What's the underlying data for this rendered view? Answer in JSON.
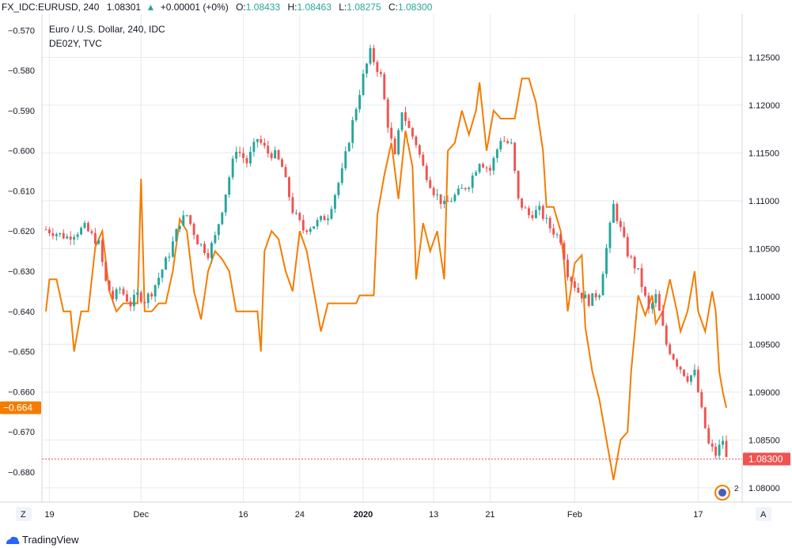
{
  "header": {
    "symbol": "FX_IDC:EURUSD, 240",
    "last": "1.08301",
    "change_arrow": "▲",
    "change": "+0.00001 (+0%)",
    "o_label": "O:",
    "o": "1.08433",
    "h_label": "H:",
    "h": "1.08463",
    "l_label": "L:",
    "l": "1.08275",
    "c_label": "C:",
    "c": "1.08300"
  },
  "legend": {
    "main": "Euro / U.S. Dollar, 240, IDC",
    "compare": "DE02Y, TVC"
  },
  "footer": {
    "brand": "TradingView"
  },
  "buttons": {
    "left": "Z",
    "right": "A"
  },
  "colors": {
    "up": "#26a69a",
    "down": "#ef5350",
    "compare": "#f57c00",
    "grid": "#e6e9ef",
    "axis_text": "#131722"
  },
  "chart_data": {
    "type": "candlestick+line",
    "x_tick_labels": [
      "19",
      "Dec",
      "16",
      "24",
      "2020",
      "13",
      "21",
      "Feb",
      "17"
    ],
    "left_axis": {
      "series": "DE02Y",
      "ticks": [
        "-0.570",
        "-0.580",
        "-0.590",
        "-0.600",
        "-0.610",
        "-0.620",
        "-0.630",
        "-0.640",
        "-0.650",
        "-0.660",
        "-0.670",
        "-0.680"
      ],
      "range": [
        -0.6875,
        -0.566
      ],
      "current_label": "-0.664"
    },
    "right_axis": {
      "series": "EURUSD",
      "ticks": [
        "1.12500",
        "1.12000",
        "1.11500",
        "1.11000",
        "1.10500",
        "1.10000",
        "1.09500",
        "1.09000",
        "1.08500",
        "1.08000"
      ],
      "range": [
        1.0785,
        1.1295
      ],
      "current_label": "1.08300"
    },
    "eurusd_path": [
      [
        0,
        1.107
      ],
      [
        6,
        1.1062
      ],
      [
        11,
        1.1072
      ],
      [
        15,
        1.1055
      ],
      [
        17,
        1.1015
      ],
      [
        19,
        1.0998
      ],
      [
        21,
        1.1008
      ],
      [
        24,
        1.0992
      ],
      [
        26,
        1.1002
      ],
      [
        28,
        1.0996
      ],
      [
        30,
        1.1005
      ],
      [
        32,
        1.102
      ],
      [
        35,
        1.1045
      ],
      [
        38,
        1.1078
      ],
      [
        40,
        1.1085
      ],
      [
        43,
        1.1058
      ],
      [
        46,
        1.1045
      ],
      [
        48,
        1.1062
      ],
      [
        50,
        1.1092
      ],
      [
        52,
        1.1125
      ],
      [
        54,
        1.1155
      ],
      [
        57,
        1.114
      ],
      [
        60,
        1.1165
      ],
      [
        63,
        1.115
      ],
      [
        65,
        1.1148
      ],
      [
        67,
        1.1135
      ],
      [
        70,
        1.109
      ],
      [
        73,
        1.107
      ],
      [
        76,
        1.1075
      ],
      [
        80,
        1.1085
      ],
      [
        84,
        1.113
      ],
      [
        87,
        1.1182
      ],
      [
        90,
        1.123
      ],
      [
        92,
        1.1255
      ],
      [
        95,
        1.123
      ],
      [
        97,
        1.118
      ],
      [
        99,
        1.1145
      ],
      [
        101,
        1.1195
      ],
      [
        103,
        1.1175
      ],
      [
        105,
        1.116
      ],
      [
        107,
        1.1135
      ],
      [
        110,
        1.111
      ],
      [
        113,
        1.1095
      ],
      [
        116,
        1.1105
      ],
      [
        120,
        1.1118
      ],
      [
        123,
        1.1142
      ],
      [
        126,
        1.1132
      ],
      [
        129,
        1.1165
      ],
      [
        132,
        1.1158
      ],
      [
        134,
        1.11
      ],
      [
        137,
        1.1085
      ],
      [
        140,
        1.109
      ],
      [
        143,
        1.1072
      ],
      [
        146,
        1.106
      ],
      [
        148,
        1.1025
      ],
      [
        151,
        1.1005
      ],
      [
        154,
        1.0995
      ],
      [
        157,
        1.1005
      ],
      [
        159,
        1.105
      ],
      [
        161,
        1.1095
      ],
      [
        163,
        1.107
      ],
      [
        165,
        1.1045
      ],
      [
        168,
        1.1025
      ],
      [
        171,
        1.0985
      ],
      [
        173,
        1.1
      ],
      [
        176,
        1.095
      ],
      [
        179,
        1.093
      ],
      [
        182,
        1.0915
      ],
      [
        184,
        1.092
      ],
      [
        186,
        1.088
      ],
      [
        188,
        1.0845
      ],
      [
        190,
        1.0835
      ],
      [
        192,
        1.085
      ],
      [
        193,
        1.083
      ]
    ],
    "de02y_path": [
      [
        0,
        -0.64
      ],
      [
        1,
        -0.632
      ],
      [
        3,
        -0.632
      ],
      [
        5,
        -0.64
      ],
      [
        7,
        -0.64
      ],
      [
        8,
        -0.65
      ],
      [
        10,
        -0.64
      ],
      [
        12,
        -0.64
      ],
      [
        14,
        -0.624
      ],
      [
        16,
        -0.62
      ],
      [
        18,
        -0.635
      ],
      [
        20,
        -0.64
      ],
      [
        22,
        -0.638
      ],
      [
        24,
        -0.638
      ],
      [
        26,
        -0.638
      ],
      [
        27,
        -0.607
      ],
      [
        28,
        -0.64
      ],
      [
        30,
        -0.64
      ],
      [
        32,
        -0.638
      ],
      [
        34,
        -0.638
      ],
      [
        36,
        -0.63
      ],
      [
        38,
        -0.617
      ],
      [
        40,
        -0.62
      ],
      [
        42,
        -0.635
      ],
      [
        44,
        -0.642
      ],
      [
        46,
        -0.63
      ],
      [
        48,
        -0.625
      ],
      [
        50,
        -0.627
      ],
      [
        52,
        -0.63
      ],
      [
        54,
        -0.64
      ],
      [
        56,
        -0.64
      ],
      [
        58,
        -0.64
      ],
      [
        60,
        -0.64
      ],
      [
        61,
        -0.65
      ],
      [
        62,
        -0.625
      ],
      [
        64,
        -0.62
      ],
      [
        66,
        -0.622
      ],
      [
        68,
        -0.63
      ],
      [
        70,
        -0.635
      ],
      [
        72,
        -0.62
      ],
      [
        74,
        -0.625
      ],
      [
        76,
        -0.635
      ],
      [
        78,
        -0.645
      ],
      [
        80,
        -0.638
      ],
      [
        82,
        -0.638
      ],
      [
        84,
        -0.638
      ],
      [
        86,
        -0.638
      ],
      [
        88,
        -0.638
      ],
      [
        89,
        -0.636
      ],
      [
        91,
        -0.636
      ],
      [
        93,
        -0.636
      ],
      [
        94,
        -0.616
      ],
      [
        96,
        -0.606
      ],
      [
        98,
        -0.598
      ],
      [
        100,
        -0.612
      ],
      [
        102,
        -0.595
      ],
      [
        104,
        -0.604
      ],
      [
        105,
        -0.632
      ],
      [
        107,
        -0.618
      ],
      [
        109,
        -0.625
      ],
      [
        111,
        -0.62
      ],
      [
        113,
        -0.632
      ],
      [
        114,
        -0.6
      ],
      [
        116,
        -0.598
      ],
      [
        118,
        -0.59
      ],
      [
        120,
        -0.596
      ],
      [
        122,
        -0.59
      ],
      [
        123,
        -0.583
      ],
      [
        125,
        -0.6
      ],
      [
        127,
        -0.59
      ],
      [
        129,
        -0.592
      ],
      [
        131,
        -0.592
      ],
      [
        133,
        -0.592
      ],
      [
        135,
        -0.582
      ],
      [
        137,
        -0.582
      ],
      [
        139,
        -0.588
      ],
      [
        140,
        -0.594
      ],
      [
        141,
        -0.6
      ],
      [
        142,
        -0.614
      ],
      [
        144,
        -0.614
      ],
      [
        146,
        -0.62
      ],
      [
        147,
        -0.628
      ],
      [
        148,
        -0.64
      ],
      [
        150,
        -0.628
      ],
      [
        152,
        -0.626
      ],
      [
        153,
        -0.644
      ],
      [
        155,
        -0.655
      ],
      [
        157,
        -0.662
      ],
      [
        159,
        -0.672
      ],
      [
        161,
        -0.682
      ],
      [
        163,
        -0.672
      ],
      [
        165,
        -0.67
      ],
      [
        166,
        -0.655
      ],
      [
        168,
        -0.636
      ],
      [
        170,
        -0.641
      ],
      [
        172,
        -0.636
      ],
      [
        173,
        -0.643
      ],
      [
        175,
        -0.64
      ],
      [
        177,
        -0.632
      ],
      [
        179,
        -0.64
      ],
      [
        180,
        -0.645
      ],
      [
        182,
        -0.64
      ],
      [
        184,
        -0.63
      ],
      [
        185,
        -0.64
      ],
      [
        187,
        -0.645
      ],
      [
        189,
        -0.635
      ],
      [
        190,
        -0.64
      ],
      [
        191,
        -0.655
      ],
      [
        192,
        -0.66
      ],
      [
        193,
        -0.664
      ]
    ]
  }
}
